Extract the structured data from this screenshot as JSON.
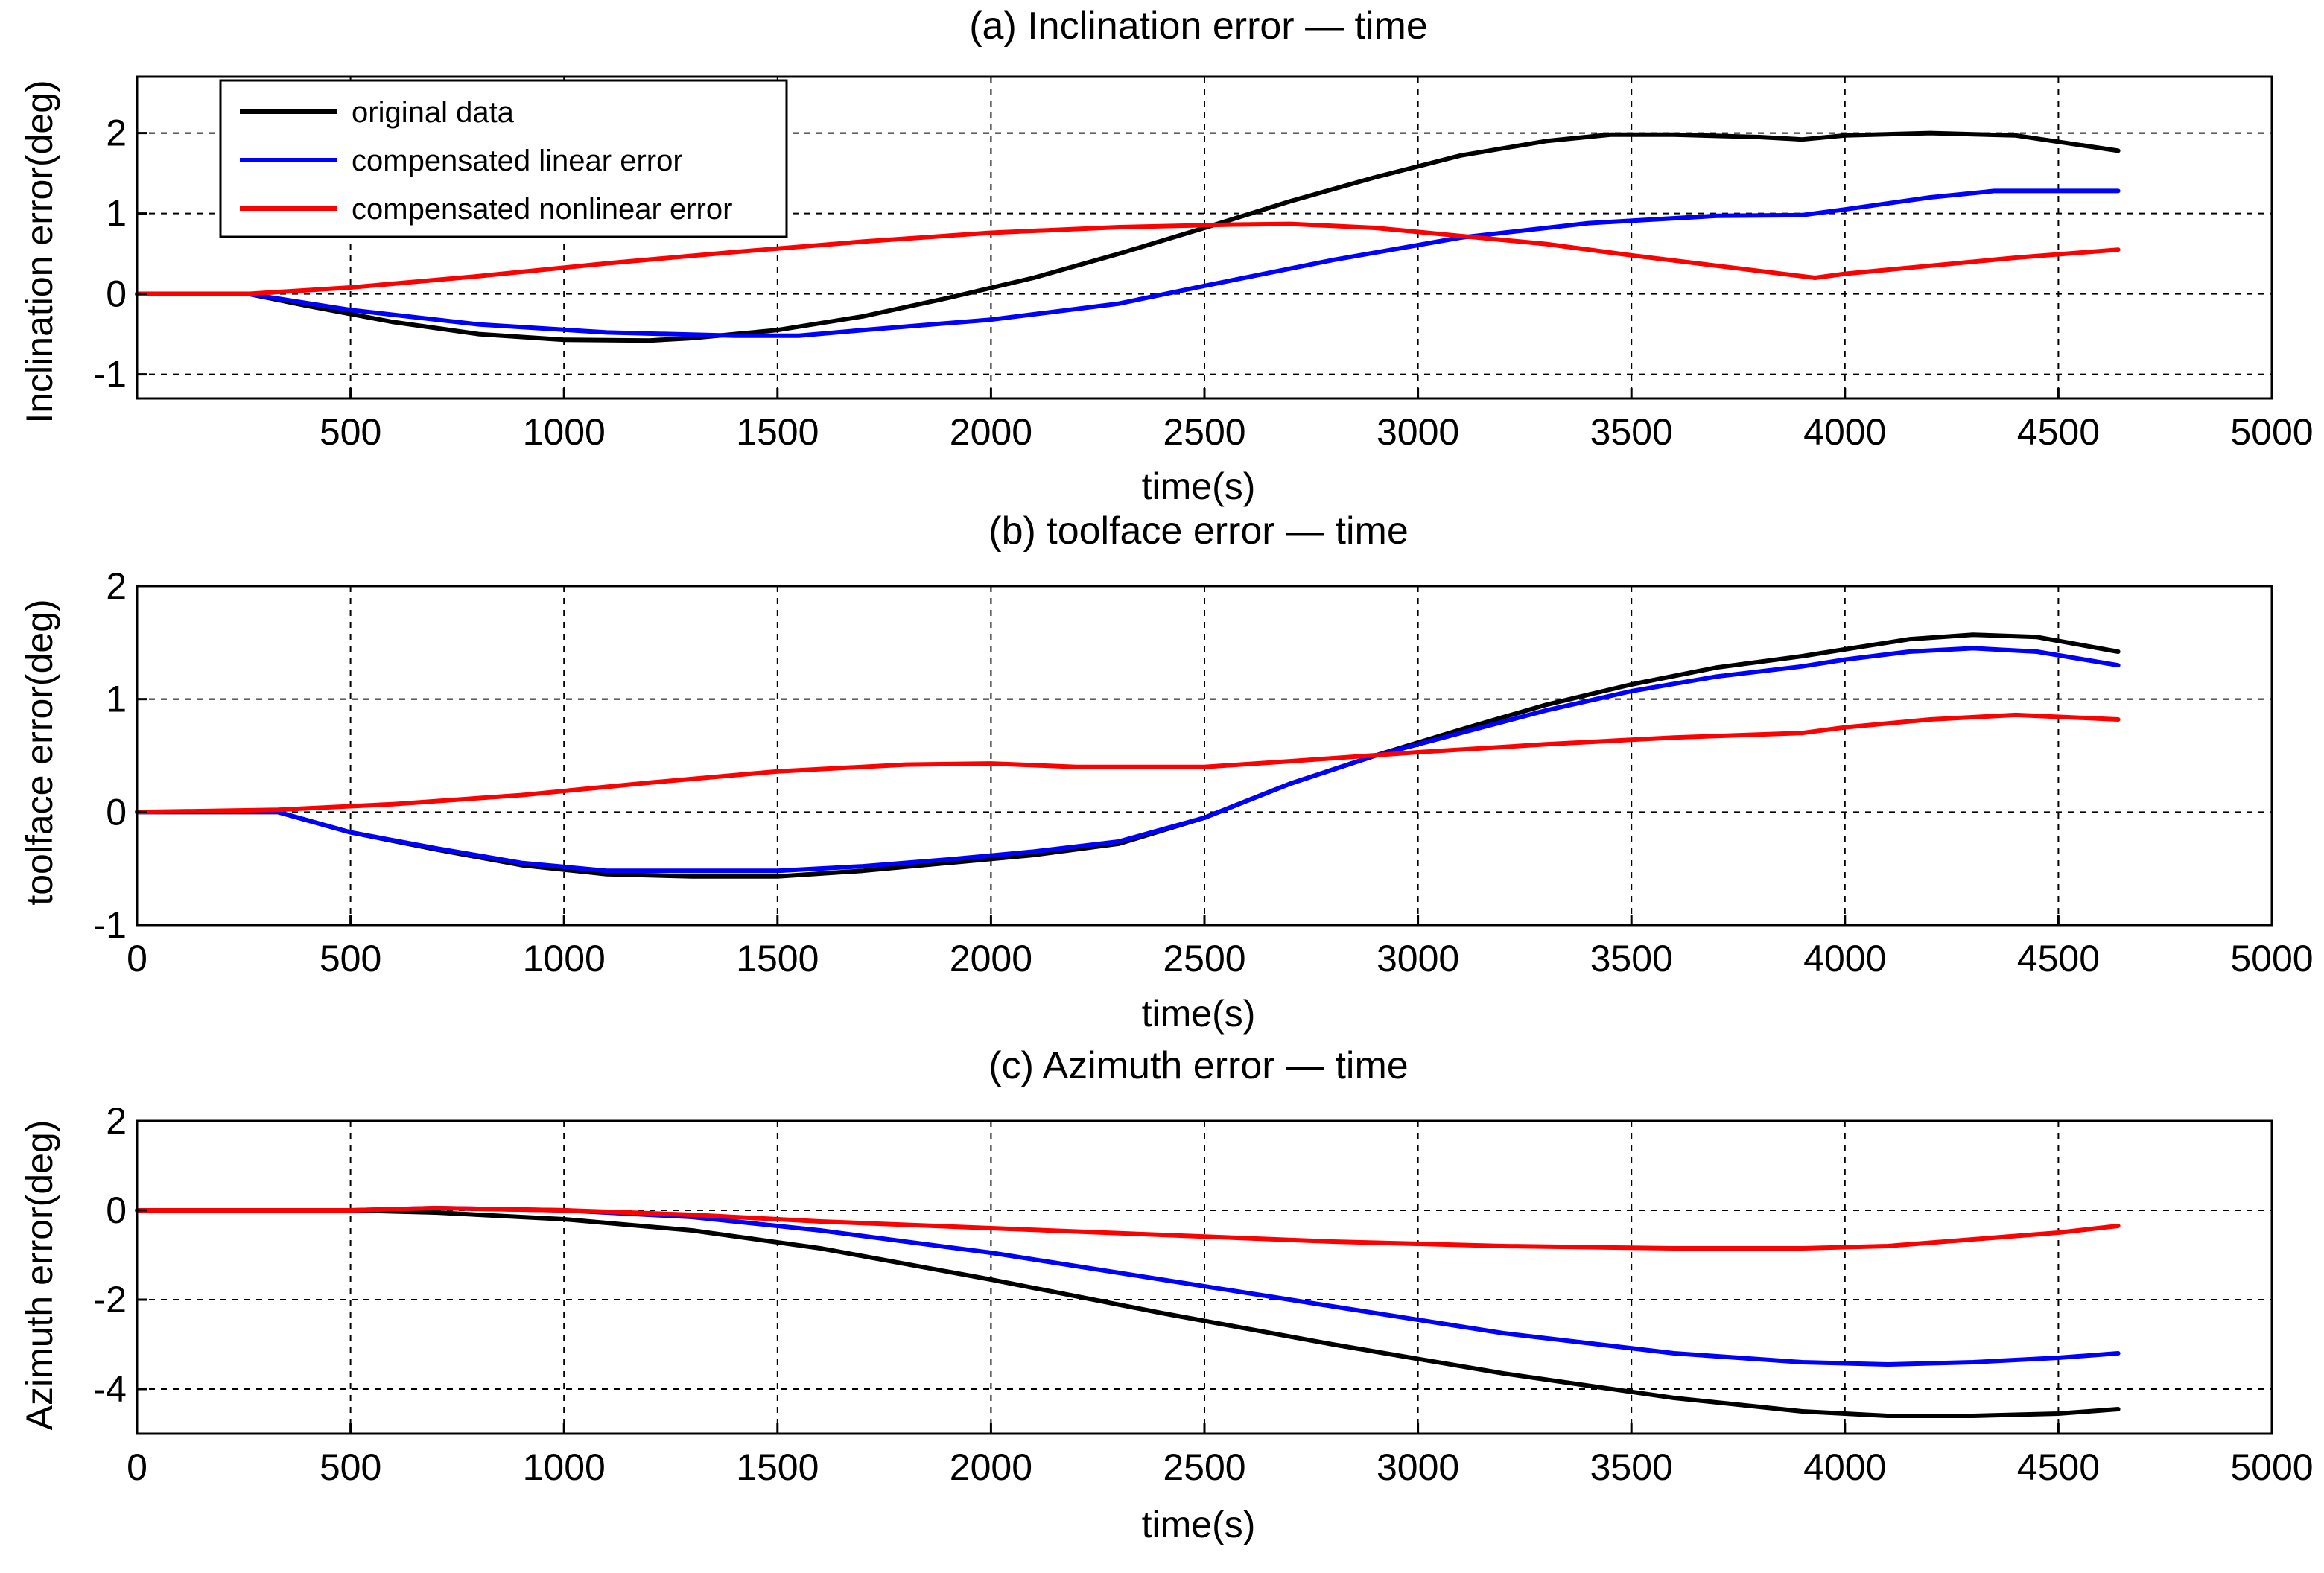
{
  "figure": {
    "background": "#ffffff",
    "axis_color": "#000000",
    "grid_color": "#000000"
  },
  "legend_entries": [
    {
      "label": "original data",
      "color": "#000000"
    },
    {
      "label": "compensated linear error",
      "color": "#0000ff"
    },
    {
      "label": "compensated nonlinear error",
      "color": "#ff0000"
    }
  ],
  "chart_data": [
    {
      "type": "line",
      "title": "(a) Inclination error — time",
      "xlabel": "time(s)",
      "ylabel": "Inclination error(deg)",
      "xlim": [
        0,
        5000
      ],
      "ylim": [
        -1.3,
        2.7
      ],
      "xticks": [
        500,
        1000,
        1500,
        2000,
        2500,
        3000,
        3500,
        4000,
        4500,
        5000
      ],
      "xtick_labels": [
        "500",
        "1000",
        "1500",
        "2000",
        "2500",
        "3000",
        "3500",
        "4000",
        "4500",
        "5000"
      ],
      "yticks": [
        -1,
        0,
        1,
        2
      ],
      "ytick_labels": [
        "-1",
        "0",
        "1",
        "2"
      ],
      "grid": true,
      "legend": true,
      "legend_position": "top-left",
      "series": [
        {
          "name": "original data",
          "color": "#000000",
          "x": [
            0,
            260,
            400,
            600,
            800,
            1000,
            1200,
            1300,
            1500,
            1700,
            1900,
            2100,
            2300,
            2500,
            2700,
            2900,
            3100,
            3300,
            3450,
            3600,
            3800,
            3900,
            4000,
            4200,
            4400,
            4640
          ],
          "y": [
            0,
            0,
            -0.15,
            -0.35,
            -0.5,
            -0.57,
            -0.58,
            -0.55,
            -0.45,
            -0.28,
            -0.05,
            0.2,
            0.5,
            0.82,
            1.15,
            1.45,
            1.72,
            1.9,
            1.98,
            1.98,
            1.95,
            1.92,
            1.97,
            2.0,
            1.97,
            1.78
          ]
        },
        {
          "name": "compensated linear error",
          "color": "#0000ff",
          "x": [
            0,
            260,
            500,
            800,
            1100,
            1400,
            1550,
            1700,
            2000,
            2300,
            2500,
            2800,
            3100,
            3400,
            3700,
            3900,
            4000,
            4200,
            4350,
            4640
          ],
          "y": [
            0,
            0,
            -0.2,
            -0.38,
            -0.48,
            -0.52,
            -0.52,
            -0.45,
            -0.32,
            -0.12,
            0.1,
            0.42,
            0.7,
            0.88,
            0.97,
            0.98,
            1.05,
            1.2,
            1.28,
            1.28
          ]
        },
        {
          "name": "compensated nonlinear error",
          "color": "#ff0000",
          "x": [
            0,
            260,
            500,
            800,
            1100,
            1400,
            1700,
            2000,
            2300,
            2550,
            2700,
            2900,
            3100,
            3300,
            3500,
            3700,
            3930,
            4000,
            4200,
            4400,
            4640
          ],
          "y": [
            0,
            0,
            0.08,
            0.22,
            0.38,
            0.52,
            0.65,
            0.76,
            0.83,
            0.86,
            0.87,
            0.82,
            0.72,
            0.62,
            0.48,
            0.35,
            0.2,
            0.25,
            0.35,
            0.45,
            0.55
          ]
        }
      ]
    },
    {
      "type": "line",
      "title": "(b) toolface error — time",
      "xlabel": "time(s)",
      "ylabel": "toolface error(deg)",
      "xlim": [
        0,
        5000
      ],
      "ylim": [
        -1,
        2
      ],
      "xticks": [
        0,
        500,
        1000,
        1500,
        2000,
        2500,
        3000,
        3500,
        4000,
        4500,
        5000
      ],
      "xtick_labels": [
        "0",
        "500",
        "1000",
        "1500",
        "2000",
        "2500",
        "3000",
        "3500",
        "4000",
        "4500",
        "5000"
      ],
      "yticks": [
        -1,
        0,
        1,
        2
      ],
      "ytick_labels": [
        "-1",
        "0",
        "1",
        "2"
      ],
      "grid": true,
      "legend": false,
      "series": [
        {
          "name": "original data",
          "color": "#000000",
          "x": [
            0,
            330,
            500,
            700,
            900,
            1100,
            1300,
            1500,
            1700,
            1900,
            2100,
            2300,
            2500,
            2700,
            2900,
            3100,
            3300,
            3500,
            3700,
            3900,
            4000,
            4150,
            4300,
            4450,
            4640
          ],
          "y": [
            0,
            0,
            -0.18,
            -0.33,
            -0.47,
            -0.55,
            -0.57,
            -0.57,
            -0.52,
            -0.45,
            -0.38,
            -0.28,
            -0.05,
            0.25,
            0.5,
            0.73,
            0.95,
            1.13,
            1.28,
            1.38,
            1.44,
            1.53,
            1.57,
            1.55,
            1.42
          ]
        },
        {
          "name": "compensated linear error",
          "color": "#0000ff",
          "x": [
            0,
            330,
            500,
            700,
            900,
            1100,
            1300,
            1500,
            1700,
            1900,
            2100,
            2300,
            2500,
            2700,
            2900,
            3100,
            3300,
            3500,
            3700,
            3900,
            4000,
            4150,
            4300,
            4450,
            4640
          ],
          "y": [
            0,
            0,
            -0.18,
            -0.32,
            -0.45,
            -0.52,
            -0.52,
            -0.52,
            -0.48,
            -0.42,
            -0.35,
            -0.26,
            -0.05,
            0.25,
            0.5,
            0.7,
            0.9,
            1.07,
            1.2,
            1.29,
            1.35,
            1.42,
            1.45,
            1.42,
            1.3
          ]
        },
        {
          "name": "compensated nonlinear error",
          "color": "#ff0000",
          "x": [
            0,
            330,
            600,
            900,
            1200,
            1500,
            1800,
            2000,
            2200,
            2500,
            2700,
            3000,
            3300,
            3600,
            3900,
            4000,
            4200,
            4400,
            4640
          ],
          "y": [
            0,
            0.02,
            0.07,
            0.15,
            0.26,
            0.36,
            0.42,
            0.43,
            0.4,
            0.4,
            0.45,
            0.53,
            0.6,
            0.66,
            0.7,
            0.75,
            0.82,
            0.86,
            0.82
          ]
        }
      ]
    },
    {
      "type": "line",
      "title": "(c) Azimuth error — time",
      "xlabel": "time(s)",
      "ylabel": "Azimuth error(deg)",
      "xlim": [
        0,
        5000
      ],
      "ylim": [
        -5,
        2
      ],
      "xticks": [
        0,
        500,
        1000,
        1500,
        2000,
        2500,
        3000,
        3500,
        4000,
        4500,
        5000
      ],
      "xtick_labels": [
        "0",
        "500",
        "1000",
        "1500",
        "2000",
        "2500",
        "3000",
        "3500",
        "4000",
        "4500",
        "5000"
      ],
      "yticks": [
        -4,
        -2,
        0,
        2
      ],
      "ytick_labels": [
        "-4",
        "-2",
        "0",
        "2"
      ],
      "grid": true,
      "legend": false,
      "series": [
        {
          "name": "original data",
          "color": "#000000",
          "x": [
            0,
            500,
            700,
            1000,
            1300,
            1600,
            2000,
            2400,
            2800,
            3200,
            3600,
            3900,
            4100,
            4300,
            4500,
            4640
          ],
          "y": [
            0,
            0,
            -0.05,
            -0.2,
            -0.45,
            -0.85,
            -1.55,
            -2.3,
            -3.0,
            -3.65,
            -4.2,
            -4.5,
            -4.6,
            -4.6,
            -4.55,
            -4.45
          ]
        },
        {
          "name": "compensated linear error",
          "color": "#0000ff",
          "x": [
            0,
            500,
            700,
            1000,
            1300,
            1600,
            2000,
            2400,
            2800,
            3200,
            3600,
            3900,
            4100,
            4300,
            4500,
            4640
          ],
          "y": [
            0,
            0,
            0.05,
            0,
            -0.15,
            -0.45,
            -0.95,
            -1.55,
            -2.15,
            -2.75,
            -3.2,
            -3.4,
            -3.45,
            -3.4,
            -3.3,
            -3.2
          ]
        },
        {
          "name": "compensated nonlinear error",
          "color": "#ff0000",
          "x": [
            0,
            500,
            700,
            1000,
            1300,
            1600,
            2000,
            2400,
            2800,
            3200,
            3600,
            3900,
            4100,
            4300,
            4500,
            4640
          ],
          "y": [
            0,
            0,
            0.05,
            0,
            -0.1,
            -0.25,
            -0.4,
            -0.55,
            -0.7,
            -0.8,
            -0.85,
            -0.85,
            -0.8,
            -0.65,
            -0.5,
            -0.35
          ]
        }
      ]
    }
  ]
}
